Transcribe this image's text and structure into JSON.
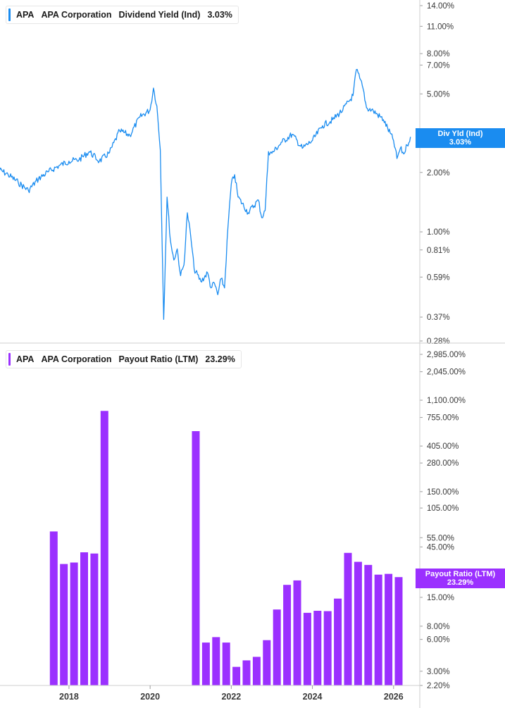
{
  "colors": {
    "line": "#1a8cf0",
    "bar": "#9b30ff",
    "grid": "#e8e8e8"
  },
  "top_panel": {
    "legend": {
      "ticker": "APA",
      "company": "APA Corporation",
      "metric": "Dividend Yield (Ind)",
      "value": "3.03%"
    },
    "tag": {
      "label": "Div Yld (Ind)",
      "value": "3.03%"
    }
  },
  "bottom_panel": {
    "legend": {
      "ticker": "APA",
      "company": "APA Corporation",
      "metric": "Payout Ratio (LTM)",
      "value": "23.29%"
    },
    "tag": {
      "label": "Payout Ratio (LTM)",
      "value": "23.29%"
    }
  },
  "chart_data": [
    {
      "type": "line",
      "title": "APA Corporation Dividend Yield (Ind)",
      "y_scale": "log",
      "ylim": [
        0.28,
        14.0
      ],
      "yticks": [
        {
          "v": 14.0,
          "label": "14.00%"
        },
        {
          "v": 11.0,
          "label": "11.00%"
        },
        {
          "v": 8.0,
          "label": "8.00%"
        },
        {
          "v": 7.0,
          "label": "7.00%"
        },
        {
          "v": 5.0,
          "label": "5.00%"
        },
        {
          "v": 3.0,
          "label": "3.0"
        },
        {
          "v": 2.0,
          "label": "2.00%"
        },
        {
          "v": 1.0,
          "label": "1.00%"
        },
        {
          "v": 0.81,
          "label": "0.81%"
        },
        {
          "v": 0.59,
          "label": "0.59%"
        },
        {
          "v": 0.37,
          "label": "0.37%"
        },
        {
          "v": 0.28,
          "label": "0.28%"
        }
      ],
      "xlim": [
        "2016-04",
        "2026-10"
      ],
      "x": [
        "2016-04",
        "2016-07",
        "2016-10",
        "2017-01",
        "2017-04",
        "2017-07",
        "2017-10",
        "2018-01",
        "2018-04",
        "2018-07",
        "2018-10",
        "2019-01",
        "2019-04",
        "2019-07",
        "2019-10",
        "2020-01",
        "2020-02",
        "2020-03",
        "2020-04",
        "2020-05",
        "2020-06",
        "2020-07",
        "2020-08",
        "2020-09",
        "2020-10",
        "2020-11",
        "2020-12",
        "2021-01",
        "2021-02",
        "2021-04",
        "2021-06",
        "2021-07",
        "2021-08",
        "2021-09",
        "2021-10",
        "2021-11",
        "2021-12",
        "2022-01",
        "2022-02",
        "2022-03",
        "2022-06",
        "2022-09",
        "2022-10",
        "2022-11",
        "2022-12",
        "2023-01",
        "2023-04",
        "2023-07",
        "2023-10",
        "2024-01",
        "2024-04",
        "2024-07",
        "2024-10",
        "2025-01",
        "2025-02",
        "2025-03",
        "2025-04",
        "2025-05",
        "2025-07",
        "2025-10",
        "2026-01",
        "2026-02",
        "2026-03",
        "2026-04",
        "2026-05",
        "2026-06"
      ],
      "values": [
        2.08,
        1.95,
        1.78,
        1.62,
        1.86,
        2.02,
        2.16,
        2.28,
        2.32,
        2.55,
        2.28,
        2.52,
        3.25,
        3.08,
        3.82,
        4.15,
        5.35,
        4.35,
        2.6,
        0.36,
        1.5,
        0.9,
        0.72,
        0.82,
        0.6,
        0.68,
        1.25,
        0.95,
        0.65,
        0.56,
        0.62,
        0.52,
        0.55,
        0.48,
        0.58,
        0.52,
        1.05,
        1.75,
        1.95,
        1.5,
        1.25,
        1.45,
        1.18,
        1.28,
        2.55,
        2.5,
        2.85,
        3.12,
        2.65,
        2.9,
        3.45,
        3.7,
        4.15,
        4.9,
        6.65,
        6.0,
        5.3,
        4.25,
        4.1,
        3.7,
        2.9,
        2.35,
        2.65,
        2.48,
        2.75,
        3.03
      ],
      "series": [
        {
          "name": "APA Corporation Dividend Yield (Ind)"
        }
      ]
    },
    {
      "type": "bar",
      "title": "APA Corporation Payout Ratio (LTM)",
      "y_scale": "log",
      "ylim": [
        2.2,
        2985.0
      ],
      "yticks": [
        {
          "v": 2985,
          "label": "2,985.00%"
        },
        {
          "v": 2045,
          "label": "2,045.00%"
        },
        {
          "v": 1100,
          "label": "1,100.00%"
        },
        {
          "v": 755,
          "label": "755.00%"
        },
        {
          "v": 405,
          "label": "405.00%"
        },
        {
          "v": 280,
          "label": "280.00%"
        },
        {
          "v": 150,
          "label": "150.00%"
        },
        {
          "v": 105,
          "label": "105.00%"
        },
        {
          "v": 55,
          "label": "55.00%"
        },
        {
          "v": 45,
          "label": "45.00%"
        },
        {
          "v": 15,
          "label": "15.00%"
        },
        {
          "v": 8,
          "label": "8.00%"
        },
        {
          "v": 6,
          "label": "6.00%"
        },
        {
          "v": 3,
          "label": "3.00%"
        },
        {
          "v": 2.2,
          "label": "2.20%"
        }
      ],
      "categories": [
        "2017-Q3",
        "2017-Q4",
        "2018-Q1",
        "2018-Q2",
        "2018-Q3",
        "2018-Q4",
        "2021-Q1",
        "2021-Q2",
        "2021-Q3",
        "2021-Q4",
        "2022-Q1",
        "2022-Q2",
        "2022-Q3",
        "2022-Q4",
        "2023-Q1",
        "2023-Q2",
        "2023-Q3",
        "2023-Q4",
        "2024-Q1",
        "2024-Q2",
        "2024-Q3",
        "2024-Q4",
        "2025-Q1",
        "2025-Q2",
        "2025-Q3",
        "2025-Q4",
        "2026-Q1"
      ],
      "values": [
        63,
        31,
        32,
        40,
        39,
        870,
        560,
        5.6,
        6.3,
        5.6,
        3.3,
        3.8,
        4.1,
        5.9,
        11.5,
        19.7,
        21.7,
        10.7,
        11.2,
        11.1,
        14.6,
        39.5,
        32.5,
        30.4,
        24.6,
        25.0,
        23.29
      ],
      "series": [
        {
          "name": "APA Corporation Payout Ratio (LTM)"
        }
      ]
    }
  ],
  "x_axis": {
    "ticks": [
      {
        "v": 2018,
        "label": "2018"
      },
      {
        "v": 2020,
        "label": "2020"
      },
      {
        "v": 2022,
        "label": "2022"
      },
      {
        "v": 2024,
        "label": "2024"
      },
      {
        "v": 2026,
        "label": "2026"
      }
    ]
  }
}
